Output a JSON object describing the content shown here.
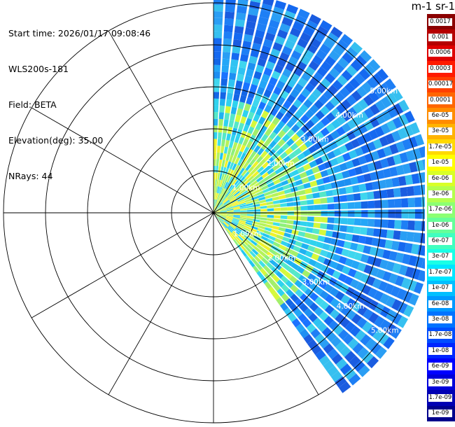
{
  "info": {
    "start_time": "Start time: 2026/01/17 09:08:46",
    "instrument": "WLS200s-181",
    "field": "Field: BETA",
    "elevation": "Elevation(deg): 35.00",
    "nrays": "NRays: 44"
  },
  "colorbar": {
    "title": "m-1 sr-1",
    "labels": [
      "0.0017",
      "0.001",
      "0.0006",
      "0.0003",
      "0.00017",
      "0.0001",
      "6e-05",
      "3e-05",
      "1.7e-05",
      "1e-05",
      "6e-06",
      "3e-06",
      "1.7e-06",
      "1e-06",
      "6e-07",
      "3e-07",
      "1.7e-07",
      "1e-07",
      "6e-08",
      "3e-08",
      "1.7e-08",
      "1e-08",
      "6e-09",
      "3e-09",
      "1.7e-09",
      "1e-09"
    ],
    "colors": [
      "#8b0000",
      "#b50000",
      "#de0000",
      "#ff1a00",
      "#ff4000",
      "#ff6600",
      "#ff8c00",
      "#ffb300",
      "#ffd900",
      "#ffff00",
      "#d9ff26",
      "#b3ff4d",
      "#8cff73",
      "#66ff99",
      "#40ffbf",
      "#1affe6",
      "#00e6ff",
      "#00bfff",
      "#0099ff",
      "#0073ff",
      "#004dff",
      "#0026ff",
      "#0000ff",
      "#0000d9",
      "#0000b3",
      "#00008c"
    ]
  },
  "chart_data": {
    "type": "ppi",
    "rings_km": [
      1,
      2,
      3,
      4,
      5
    ],
    "ring_labels": [
      "1.00km",
      "2.00km",
      "3.00km",
      "4.00km",
      "5.00km"
    ],
    "spoke_step_deg": 30,
    "sector_azimuth_deg": [
      0,
      145
    ],
    "max_range_km": 5.0
  }
}
